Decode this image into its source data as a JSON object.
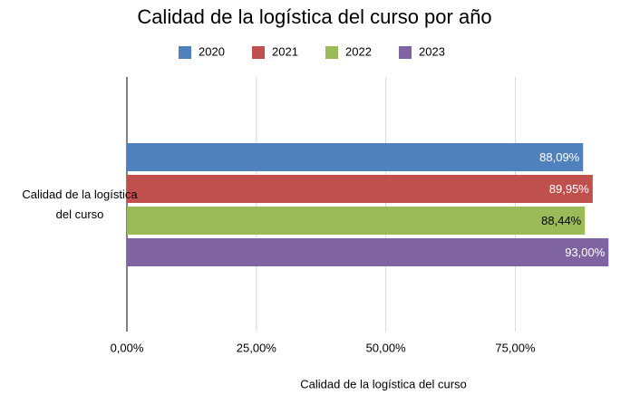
{
  "chart_data": {
    "type": "hbar",
    "title": "Calidad de la logística del curso por año",
    "x_label": "Calidad de la logística del curso",
    "categories": [
      "Calidad de la logística del curso"
    ],
    "series": [
      {
        "name": "2020",
        "color": "#4f81bd",
        "label_color": "#ffffff",
        "values": [
          88.09
        ],
        "value_labels": [
          "88,09%"
        ]
      },
      {
        "name": "2021",
        "color": "#c0504d",
        "label_color": "#ffffff",
        "values": [
          89.95
        ],
        "value_labels": [
          "89,95%"
        ]
      },
      {
        "name": "2022",
        "color": "#9bbb59",
        "label_color": "#000000",
        "values": [
          88.44
        ],
        "value_labels": [
          "88,44%"
        ]
      },
      {
        "name": "2023",
        "color": "#8064a2",
        "label_color": "#ffffff",
        "values": [
          93.0
        ],
        "value_labels": [
          "93,00%"
        ]
      }
    ],
    "xlim": [
      0,
      94
    ],
    "xticks": [
      {
        "value": 0,
        "label": "0,00%"
      },
      {
        "value": 25,
        "label": "25,00%"
      },
      {
        "value": 50,
        "label": "50,00%"
      },
      {
        "value": 75,
        "label": "75,00%"
      }
    ],
    "grid": true,
    "legend": "top"
  }
}
